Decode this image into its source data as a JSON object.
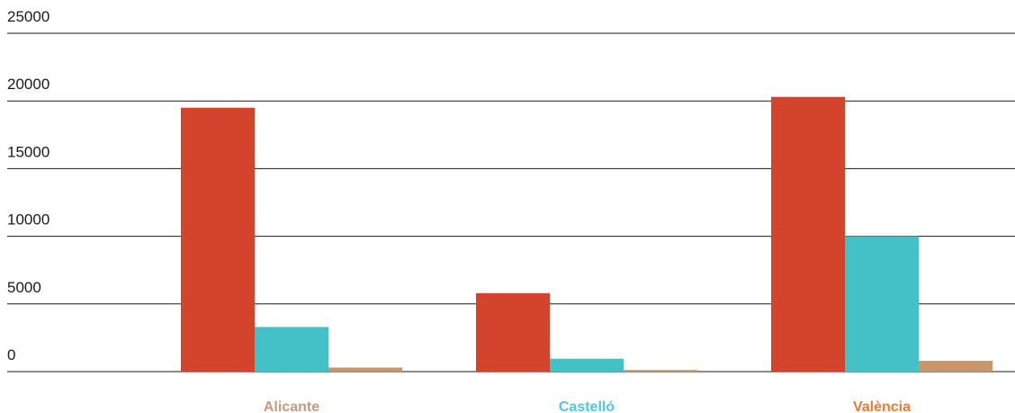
{
  "chart_data": {
    "type": "bar",
    "categories": [
      "Alicante",
      "Castelló",
      "València"
    ],
    "category_colors": [
      "#c9997a",
      "#4cc7e6",
      "#f07a2e"
    ],
    "series": [
      {
        "values": [
          19500,
          5800,
          20300
        ],
        "color": "#d2442b"
      },
      {
        "values": [
          3300,
          950,
          10000
        ],
        "color": "#43c1c6"
      },
      {
        "values": [
          300,
          120,
          800
        ],
        "color": "#c8956d"
      }
    ],
    "yticks": [
      0,
      5000,
      10000,
      15000,
      20000,
      25000
    ],
    "ylim": [
      0,
      25000
    ],
    "grid": true,
    "title": "",
    "xlabel": "",
    "ylabel": ""
  }
}
